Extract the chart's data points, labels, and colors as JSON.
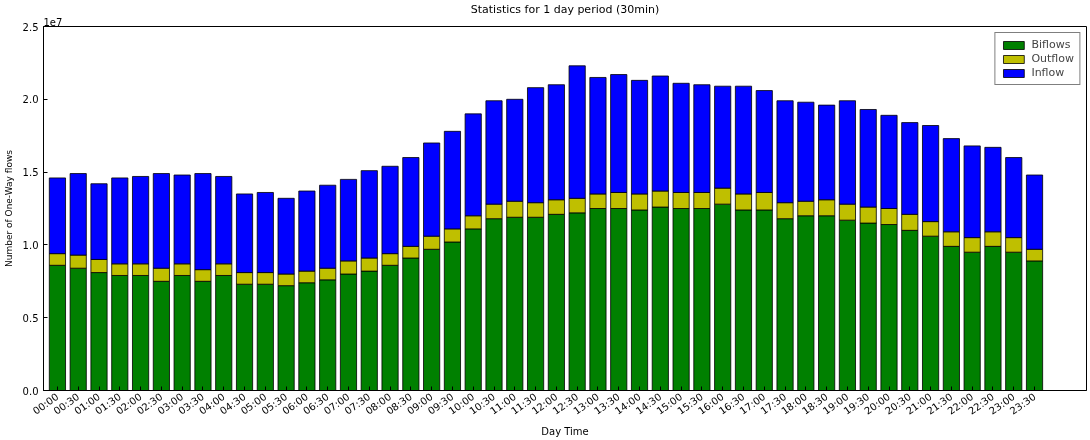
{
  "chart_data": {
    "type": "bar",
    "stacked": true,
    "title": "Statistics for 1 day period (30min)",
    "xlabel": "Day Time",
    "ylabel": "Number of One-Way flows",
    "annotations": [
      "1e7"
    ],
    "categories": [
      "00:00",
      "00:30",
      "01:00",
      "01:30",
      "02:00",
      "02:30",
      "03:00",
      "03:30",
      "04:00",
      "04:30",
      "05:00",
      "05:30",
      "06:00",
      "06:30",
      "07:00",
      "07:30",
      "08:00",
      "08:30",
      "09:00",
      "09:30",
      "10:00",
      "10:30",
      "11:00",
      "11:30",
      "12:00",
      "12:30",
      "13:00",
      "13:30",
      "14:00",
      "14:30",
      "15:00",
      "15:30",
      "16:00",
      "16:30",
      "17:00",
      "17:30",
      "18:00",
      "18:30",
      "19:00",
      "19:30",
      "20:00",
      "20:30",
      "21:00",
      "21:30",
      "22:00",
      "22:30",
      "23:00",
      "23:30"
    ],
    "series": [
      {
        "name": "Biflows",
        "color": "#008000",
        "values": [
          0.86,
          0.84,
          0.81,
          0.79,
          0.79,
          0.75,
          0.79,
          0.75,
          0.79,
          0.73,
          0.73,
          0.72,
          0.74,
          0.76,
          0.8,
          0.82,
          0.86,
          0.91,
          0.97,
          1.02,
          1.11,
          1.18,
          1.19,
          1.19,
          1.21,
          1.22,
          1.25,
          1.25,
          1.24,
          1.26,
          1.25,
          1.25,
          1.28,
          1.24,
          1.24,
          1.18,
          1.2,
          1.2,
          1.17,
          1.15,
          1.14,
          1.1,
          1.06,
          0.99,
          0.95,
          0.99,
          0.95,
          0.89
        ]
      },
      {
        "name": "Outflow",
        "color": "#bfbf00",
        "values": [
          0.08,
          0.09,
          0.09,
          0.08,
          0.08,
          0.09,
          0.08,
          0.08,
          0.08,
          0.08,
          0.08,
          0.08,
          0.08,
          0.08,
          0.09,
          0.09,
          0.08,
          0.08,
          0.09,
          0.09,
          0.09,
          0.1,
          0.11,
          0.1,
          0.1,
          0.1,
          0.1,
          0.11,
          0.11,
          0.11,
          0.11,
          0.11,
          0.11,
          0.11,
          0.12,
          0.11,
          0.1,
          0.11,
          0.11,
          0.11,
          0.11,
          0.11,
          0.1,
          0.1,
          0.1,
          0.1,
          0.1,
          0.08
        ]
      },
      {
        "name": "Inflow",
        "color": "#0000ff",
        "values": [
          0.52,
          0.56,
          0.52,
          0.59,
          0.6,
          0.65,
          0.61,
          0.66,
          0.6,
          0.54,
          0.55,
          0.52,
          0.55,
          0.57,
          0.56,
          0.6,
          0.6,
          0.61,
          0.64,
          0.67,
          0.7,
          0.71,
          0.7,
          0.79,
          0.79,
          0.91,
          0.8,
          0.81,
          0.78,
          0.79,
          0.75,
          0.74,
          0.7,
          0.74,
          0.7,
          0.7,
          0.68,
          0.65,
          0.71,
          0.67,
          0.64,
          0.63,
          0.66,
          0.64,
          0.63,
          0.58,
          0.55,
          0.51
        ]
      }
    ],
    "ylim": [
      0,
      2.5
    ],
    "yticks": [
      {
        "value": 0,
        "label": "0.0"
      },
      0.5,
      {
        "value": 1,
        "label": "1.0"
      },
      1.5,
      {
        "value": 2,
        "label": "2.0"
      },
      2.5
    ],
    "legend": "top right"
  }
}
